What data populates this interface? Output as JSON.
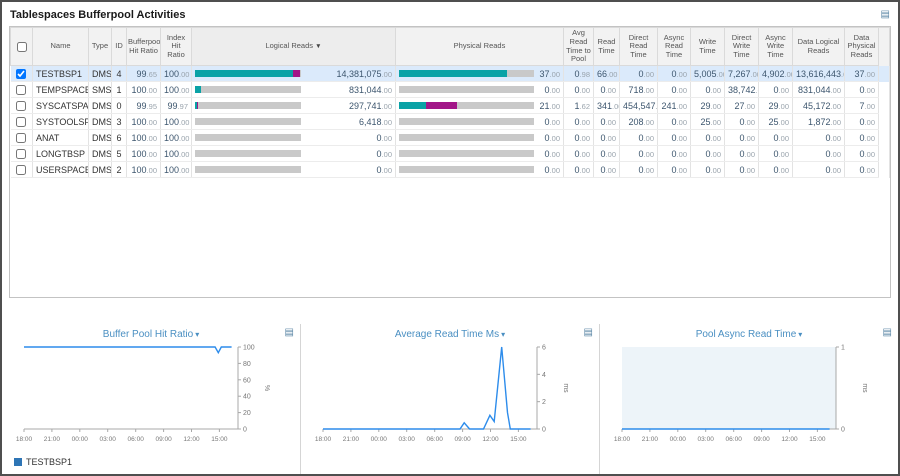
{
  "title": "Tablespaces Bufferpool Activities",
  "icons": {
    "widget_menu": "▤",
    "panel_menu": "▤",
    "sort_desc": "▼",
    "dropdown": "▾"
  },
  "colors": {
    "teal_bar": "#0aa2a6",
    "magenta_bar": "#a21688",
    "bar_track": "#c9c9c9",
    "selected_row": "#dbeafb",
    "chart_title": "#4a8fc2",
    "chart_line": "#2d8ceb",
    "legend_swatch": "#2e75b5"
  },
  "table": {
    "headers": [
      "Name",
      "Type",
      "ID",
      "Bufferpool Hit Ratio",
      "Index Hit Ratio",
      "Logical Reads",
      "Physical Reads",
      "Avg Read Time to Pool",
      "Read Time",
      "Direct Read Time",
      "Async Read Time",
      "Write Time",
      "Direct Write Time",
      "Async Write Time",
      "Data Logical Reads",
      "Data Physical Reads"
    ],
    "sorted_column": "Logical Reads",
    "rows": [
      {
        "checked": true,
        "name": "TESTBSP1",
        "type": "DMS",
        "id": "4",
        "bufferpool_hit_ratio": "99.65",
        "index_hit_ratio": "100.00",
        "logical_reads": "14,381,075.00",
        "logical_bar": {
          "teal_pct": 92,
          "magenta_pct": 7
        },
        "physical_reads": "37.00",
        "physical_bar": {
          "teal_pct": 80,
          "magenta_pct": 0
        },
        "avg_read_time_to_pool": "0.98",
        "read_time": "66.00",
        "direct_read_time": "0.00",
        "async_read_time": "0.00",
        "write_time": "5,005.00",
        "direct_write_time": "7,267.00",
        "async_write_time": "4,902.00",
        "data_logical_reads": "13,616,443.00",
        "data_physical_reads": "37.00"
      },
      {
        "checked": false,
        "name": "TEMPSPACE1",
        "type": "SMS",
        "id": "1",
        "bufferpool_hit_ratio": "100.00",
        "index_hit_ratio": "100.00",
        "logical_reads": "831,044.00",
        "logical_bar": {
          "teal_pct": 6,
          "magenta_pct": 0
        },
        "physical_reads": "0.00",
        "physical_bar": {
          "teal_pct": 0,
          "magenta_pct": 0
        },
        "avg_read_time_to_pool": "0.00",
        "read_time": "0.00",
        "direct_read_time": "718.00",
        "async_read_time": "0.00",
        "write_time": "0.00",
        "direct_write_time": "38,742.00",
        "async_write_time": "0.00",
        "data_logical_reads": "831,044.00",
        "data_physical_reads": "0.00"
      },
      {
        "checked": false,
        "name": "SYSCATSPACE",
        "type": "DMS",
        "id": "0",
        "bufferpool_hit_ratio": "99.95",
        "index_hit_ratio": "99.97",
        "logical_reads": "297,741.00",
        "logical_bar": {
          "teal_pct": 2,
          "magenta_pct": 1
        },
        "physical_reads": "21.00",
        "physical_bar": {
          "teal_pct": 20,
          "magenta_pct": 23
        },
        "avg_read_time_to_pool": "1.62",
        "read_time": "341.00",
        "direct_read_time": "454,547.00",
        "async_read_time": "241.00",
        "write_time": "29.00",
        "direct_write_time": "27.00",
        "async_write_time": "29.00",
        "data_logical_reads": "45,172.00",
        "data_physical_reads": "7.00"
      },
      {
        "checked": false,
        "name": "SYSTOOLSPACE",
        "type": "DMS",
        "id": "3",
        "bufferpool_hit_ratio": "100.00",
        "index_hit_ratio": "100.00",
        "logical_reads": "6,418.00",
        "logical_bar": {
          "teal_pct": 0,
          "magenta_pct": 0
        },
        "physical_reads": "0.00",
        "physical_bar": {
          "teal_pct": 0,
          "magenta_pct": 0
        },
        "avg_read_time_to_pool": "0.00",
        "read_time": "0.00",
        "direct_read_time": "208.00",
        "async_read_time": "0.00",
        "write_time": "25.00",
        "direct_write_time": "0.00",
        "async_write_time": "25.00",
        "data_logical_reads": "1,872.00",
        "data_physical_reads": "0.00"
      },
      {
        "checked": false,
        "name": "ANAT",
        "type": "DMS",
        "id": "6",
        "bufferpool_hit_ratio": "100.00",
        "index_hit_ratio": "100.00",
        "logical_reads": "0.00",
        "logical_bar": {
          "teal_pct": 0,
          "magenta_pct": 0
        },
        "physical_reads": "0.00",
        "physical_bar": {
          "teal_pct": 0,
          "magenta_pct": 0
        },
        "avg_read_time_to_pool": "0.00",
        "read_time": "0.00",
        "direct_read_time": "0.00",
        "async_read_time": "0.00",
        "write_time": "0.00",
        "direct_write_time": "0.00",
        "async_write_time": "0.00",
        "data_logical_reads": "0.00",
        "data_physical_reads": "0.00"
      },
      {
        "checked": false,
        "name": "LONGTBSP",
        "type": "DMS",
        "id": "5",
        "bufferpool_hit_ratio": "100.00",
        "index_hit_ratio": "100.00",
        "logical_reads": "0.00",
        "logical_bar": {
          "teal_pct": 0,
          "magenta_pct": 0
        },
        "physical_reads": "0.00",
        "physical_bar": {
          "teal_pct": 0,
          "magenta_pct": 0
        },
        "avg_read_time_to_pool": "0.00",
        "read_time": "0.00",
        "direct_read_time": "0.00",
        "async_read_time": "0.00",
        "write_time": "0.00",
        "direct_write_time": "0.00",
        "async_write_time": "0.00",
        "data_logical_reads": "0.00",
        "data_physical_reads": "0.00"
      },
      {
        "checked": false,
        "name": "USERSPACE1",
        "type": "DMS",
        "id": "2",
        "bufferpool_hit_ratio": "100.00",
        "index_hit_ratio": "100.00",
        "logical_reads": "0.00",
        "logical_bar": {
          "teal_pct": 0,
          "magenta_pct": 0
        },
        "physical_reads": "0.00",
        "physical_bar": {
          "teal_pct": 0,
          "magenta_pct": 0
        },
        "avg_read_time_to_pool": "0.00",
        "read_time": "0.00",
        "direct_read_time": "0.00",
        "async_read_time": "0.00",
        "write_time": "0.00",
        "direct_write_time": "0.00",
        "async_write_time": "0.00",
        "data_logical_reads": "0.00",
        "data_physical_reads": "0.00"
      }
    ]
  },
  "chart_data": [
    {
      "type": "line",
      "title": "Buffer Pool Hit Ratio",
      "y_unit": "%",
      "y_max": 100,
      "y_ticks": [
        0,
        20,
        40,
        60,
        80,
        100
      ],
      "x_ticks": [
        "18:00",
        "21:00",
        "00:00",
        "03:00",
        "06:00",
        "09:00",
        "12:00",
        "15:00"
      ],
      "legend_position": "bottom-left",
      "plot_bg": "#ffffff",
      "series": [
        {
          "name": "TESTBSP1",
          "points": [
            [
              0,
              100
            ],
            [
              0.86,
              100
            ],
            [
              0.893,
              100
            ],
            [
              0.908,
              93
            ],
            [
              0.922,
              100
            ],
            [
              0.97,
              100
            ]
          ]
        }
      ]
    },
    {
      "type": "line",
      "title": "Average Read Time Ms",
      "y_unit": "ms",
      "y_max": 6,
      "y_ticks": [
        0,
        2,
        4,
        6
      ],
      "x_ticks": [
        "18:00",
        "21:00",
        "00:00",
        "03:00",
        "06:00",
        "09:00",
        "12:00",
        "15:00"
      ],
      "plot_bg": "#ffffff",
      "series": [
        {
          "name": "TESTBSP1",
          "points": [
            [
              0,
              0
            ],
            [
              0.58,
              0
            ],
            [
              0.64,
              0
            ],
            [
              0.66,
              0.45
            ],
            [
              0.685,
              0
            ],
            [
              0.75,
              0
            ],
            [
              0.78,
              1.0
            ],
            [
              0.8,
              0.55
            ],
            [
              0.835,
              6
            ],
            [
              0.862,
              1.2
            ],
            [
              0.875,
              0
            ],
            [
              0.97,
              0
            ]
          ]
        }
      ]
    },
    {
      "type": "line",
      "title": "Pool Async Read Time",
      "y_unit": "ms",
      "y_max": 1,
      "y_ticks": [
        0,
        1
      ],
      "x_ticks": [
        "18:00",
        "21:00",
        "00:00",
        "03:00",
        "06:00",
        "09:00",
        "12:00",
        "15:00"
      ],
      "plot_bg": "#edf4f9",
      "series": [
        {
          "name": "TESTBSP1",
          "points": [
            [
              0,
              0
            ],
            [
              0.97,
              0
            ]
          ]
        }
      ]
    }
  ],
  "legend": {
    "label": "TESTBSP1"
  }
}
